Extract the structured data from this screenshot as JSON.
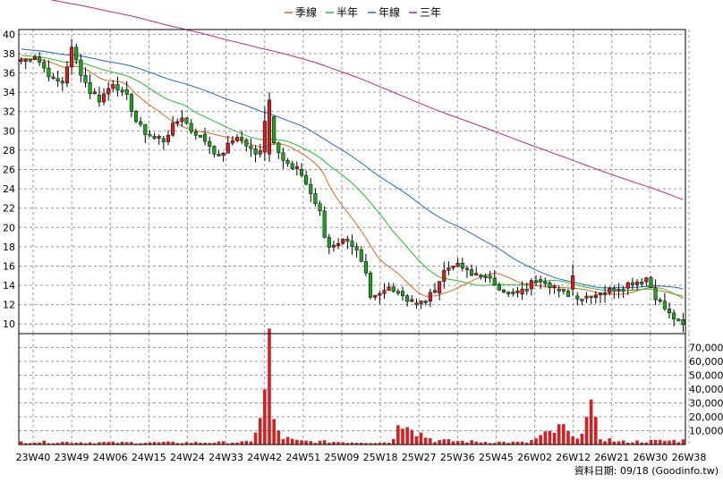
{
  "legend": [
    {
      "label": "季線",
      "color": "#e2641e"
    },
    {
      "label": "半年",
      "color": "#22c022"
    },
    {
      "label": "年線",
      "color": "#2266cc"
    },
    {
      "label": "三年",
      "color": "#cc2277"
    }
  ],
  "credit": "資料日期: 09/18 (Goodinfo.tw)",
  "colors": {
    "up": "#d42020",
    "down": "#22a022",
    "volume": "#d42020",
    "wick": "#000000"
  },
  "chart_data": {
    "type": "candlestick",
    "x_ticks": [
      "23W40",
      "23W49",
      "24W06",
      "24W15",
      "24W24",
      "24W33",
      "24W42",
      "24W51",
      "25W09",
      "25W18",
      "25W27",
      "25W36",
      "25W45",
      "26W02",
      "26W12",
      "26W21",
      "26W30",
      "26W38"
    ],
    "price_axis": {
      "ylim": [
        9,
        40.5
      ],
      "ticks": [
        10,
        12,
        14,
        16,
        18,
        20,
        22,
        24,
        26,
        28,
        30,
        32,
        34,
        36,
        38,
        40
      ]
    },
    "volume_axis": {
      "ylim": [
        0,
        80000
      ],
      "ticks": [
        10000,
        20000,
        30000,
        40000,
        50000,
        60000,
        70000
      ],
      "tick_labels": [
        "10,000",
        "20,000",
        "30,000",
        "40,000",
        "50,000",
        "60,000",
        "70,000"
      ]
    },
    "price_keypoints": [
      [
        0,
        37.2
      ],
      [
        3,
        37.8
      ],
      [
        5,
        36.5
      ],
      [
        7,
        35.2
      ],
      [
        9,
        35.0
      ],
      [
        11,
        38.5
      ],
      [
        13,
        36.0
      ],
      [
        15,
        34.0
      ],
      [
        17,
        33.2
      ],
      [
        20,
        35.0
      ],
      [
        23,
        33.5
      ],
      [
        25,
        31.0
      ],
      [
        27,
        29.8
      ],
      [
        29,
        29.2
      ],
      [
        31,
        29.0
      ],
      [
        33,
        30.5
      ],
      [
        35,
        31.5
      ],
      [
        37,
        30.0
      ],
      [
        39,
        29.5
      ],
      [
        41,
        28.5
      ],
      [
        43,
        27.2
      ],
      [
        45,
        28.5
      ],
      [
        47,
        29.5
      ],
      [
        49,
        28.5
      ],
      [
        51,
        27.5
      ],
      [
        53,
        28.8
      ],
      [
        54,
        31.5
      ],
      [
        55,
        29.0
      ],
      [
        57,
        27.0
      ],
      [
        59,
        26.0
      ],
      [
        61,
        25.5
      ],
      [
        63,
        23.5
      ],
      [
        64,
        22.5
      ],
      [
        65,
        21.5
      ],
      [
        66,
        19.0
      ],
      [
        67,
        18.0
      ],
      [
        69,
        18.5
      ],
      [
        71,
        18.8
      ],
      [
        73,
        17.5
      ],
      [
        75,
        15.0
      ],
      [
        76,
        12.5
      ],
      [
        78,
        13.0
      ],
      [
        80,
        13.8
      ],
      [
        82,
        13.5
      ],
      [
        84,
        12.5
      ],
      [
        86,
        12.0
      ],
      [
        88,
        12.5
      ],
      [
        90,
        13.5
      ],
      [
        92,
        15.5
      ],
      [
        94,
        16.2
      ],
      [
        96,
        15.8
      ],
      [
        98,
        15.0
      ],
      [
        100,
        15.2
      ],
      [
        102,
        14.5
      ],
      [
        104,
        13.8
      ],
      [
        106,
        13.2
      ],
      [
        108,
        13.0
      ],
      [
        110,
        13.8
      ],
      [
        112,
        14.8
      ],
      [
        114,
        14.5
      ],
      [
        116,
        13.6
      ],
      [
        118,
        13.2
      ],
      [
        120,
        12.9
      ],
      [
        122,
        12.8
      ],
      [
        124,
        13.0
      ],
      [
        126,
        13.2
      ],
      [
        128,
        13.5
      ],
      [
        130,
        13.8
      ],
      [
        132,
        14.2
      ],
      [
        134,
        14.4
      ],
      [
        136,
        14.8
      ],
      [
        137,
        13.8
      ],
      [
        138,
        12.8
      ],
      [
        139,
        12.2
      ],
      [
        140,
        11.6
      ],
      [
        141,
        11.0
      ],
      [
        142,
        10.6
      ],
      [
        143,
        10.2
      ],
      [
        144,
        9.8
      ]
    ],
    "volume_keypoints": [
      [
        0,
        2000
      ],
      [
        20,
        1500
      ],
      [
        40,
        1500
      ],
      [
        50,
        1800
      ],
      [
        53,
        33000
      ],
      [
        54,
        79000
      ],
      [
        55,
        14000
      ],
      [
        57,
        5000
      ],
      [
        60,
        2500
      ],
      [
        70,
        1800
      ],
      [
        80,
        1500
      ],
      [
        84,
        22000
      ],
      [
        86,
        10000
      ],
      [
        88,
        6000
      ],
      [
        90,
        3000
      ],
      [
        100,
        2000
      ],
      [
        110,
        1500
      ],
      [
        118,
        12000
      ],
      [
        120,
        4000
      ],
      [
        124,
        22000
      ],
      [
        126,
        5000
      ],
      [
        130,
        2000
      ],
      [
        144,
        3000
      ]
    ],
    "big_candles": [
      [
        54,
        "up",
        27.6,
        33.2,
        26.8,
        34.0
      ],
      [
        53,
        "up",
        27.8,
        31.0,
        26.9,
        32.5
      ],
      [
        120,
        "up",
        13.6,
        15.0,
        12.9,
        16.2
      ]
    ],
    "n_weeks": 145
  }
}
